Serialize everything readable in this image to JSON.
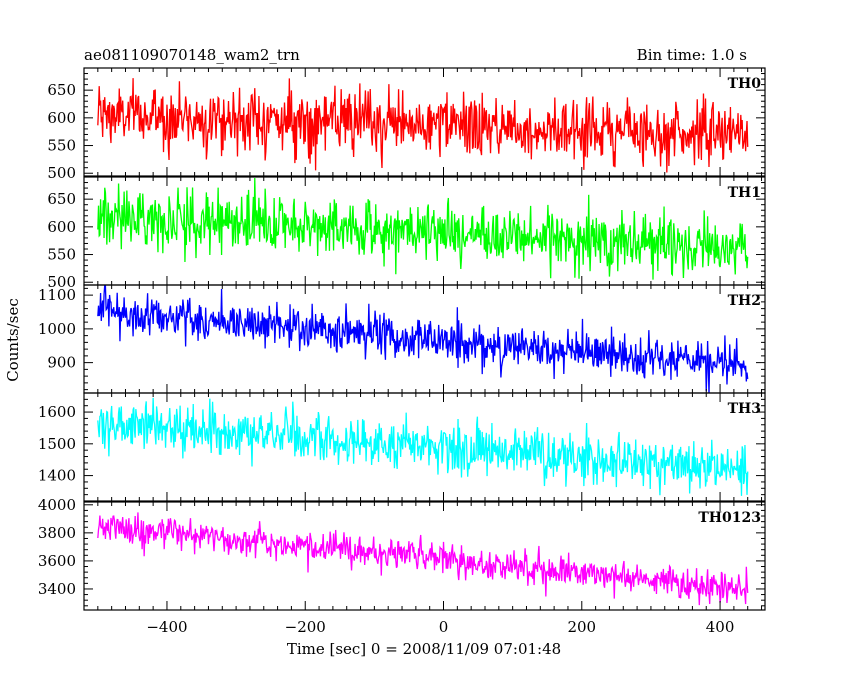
{
  "chart_data": {
    "type": "line",
    "title": "ae081109070148_wam2_trn",
    "subtitle": "Bin time: 1.0 s",
    "xlabel": "Time [sec] 0 = 2008/11/09 07:01:48",
    "ylabel": "Counts/sec",
    "xlim": [
      -520,
      465
    ],
    "x_range": [
      -500,
      440
    ],
    "x_ticks": [
      -400,
      -200,
      0,
      200,
      400
    ],
    "grid": false,
    "series": [
      {
        "name": "TH0",
        "color": "#ff0000",
        "ylim": [
          495,
          690
        ],
        "y_ticks": [
          500,
          550,
          600,
          650
        ],
        "start_value": 605,
        "end_value": 570,
        "noise": 28,
        "bias": 0
      },
      {
        "name": "TH1",
        "color": "#00ff00",
        "ylim": [
          495,
          690
        ],
        "y_ticks": [
          500,
          550,
          600,
          650
        ],
        "start_value": 620,
        "end_value": 562,
        "noise": 26,
        "bias": 0
      },
      {
        "name": "TH2",
        "color": "#0000ff",
        "ylim": [
          810,
          1130
        ],
        "y_ticks": [
          900,
          1000,
          1100
        ],
        "start_value": 1055,
        "end_value": 885,
        "noise": 32,
        "bias": 0
      },
      {
        "name": "TH3",
        "color": "#00ffff",
        "ylim": [
          1320,
          1660
        ],
        "y_ticks": [
          1400,
          1500,
          1600
        ],
        "start_value": 1565,
        "end_value": 1420,
        "noise": 38,
        "bias": 0
      },
      {
        "name": "TH0123",
        "color": "#ff00ff",
        "ylim": [
          3250,
          4020
        ],
        "y_ticks": [
          3400,
          3600,
          3800,
          4000
        ],
        "start_value": 3850,
        "end_value": 3400,
        "noise": 55,
        "bias": 0
      }
    ]
  }
}
